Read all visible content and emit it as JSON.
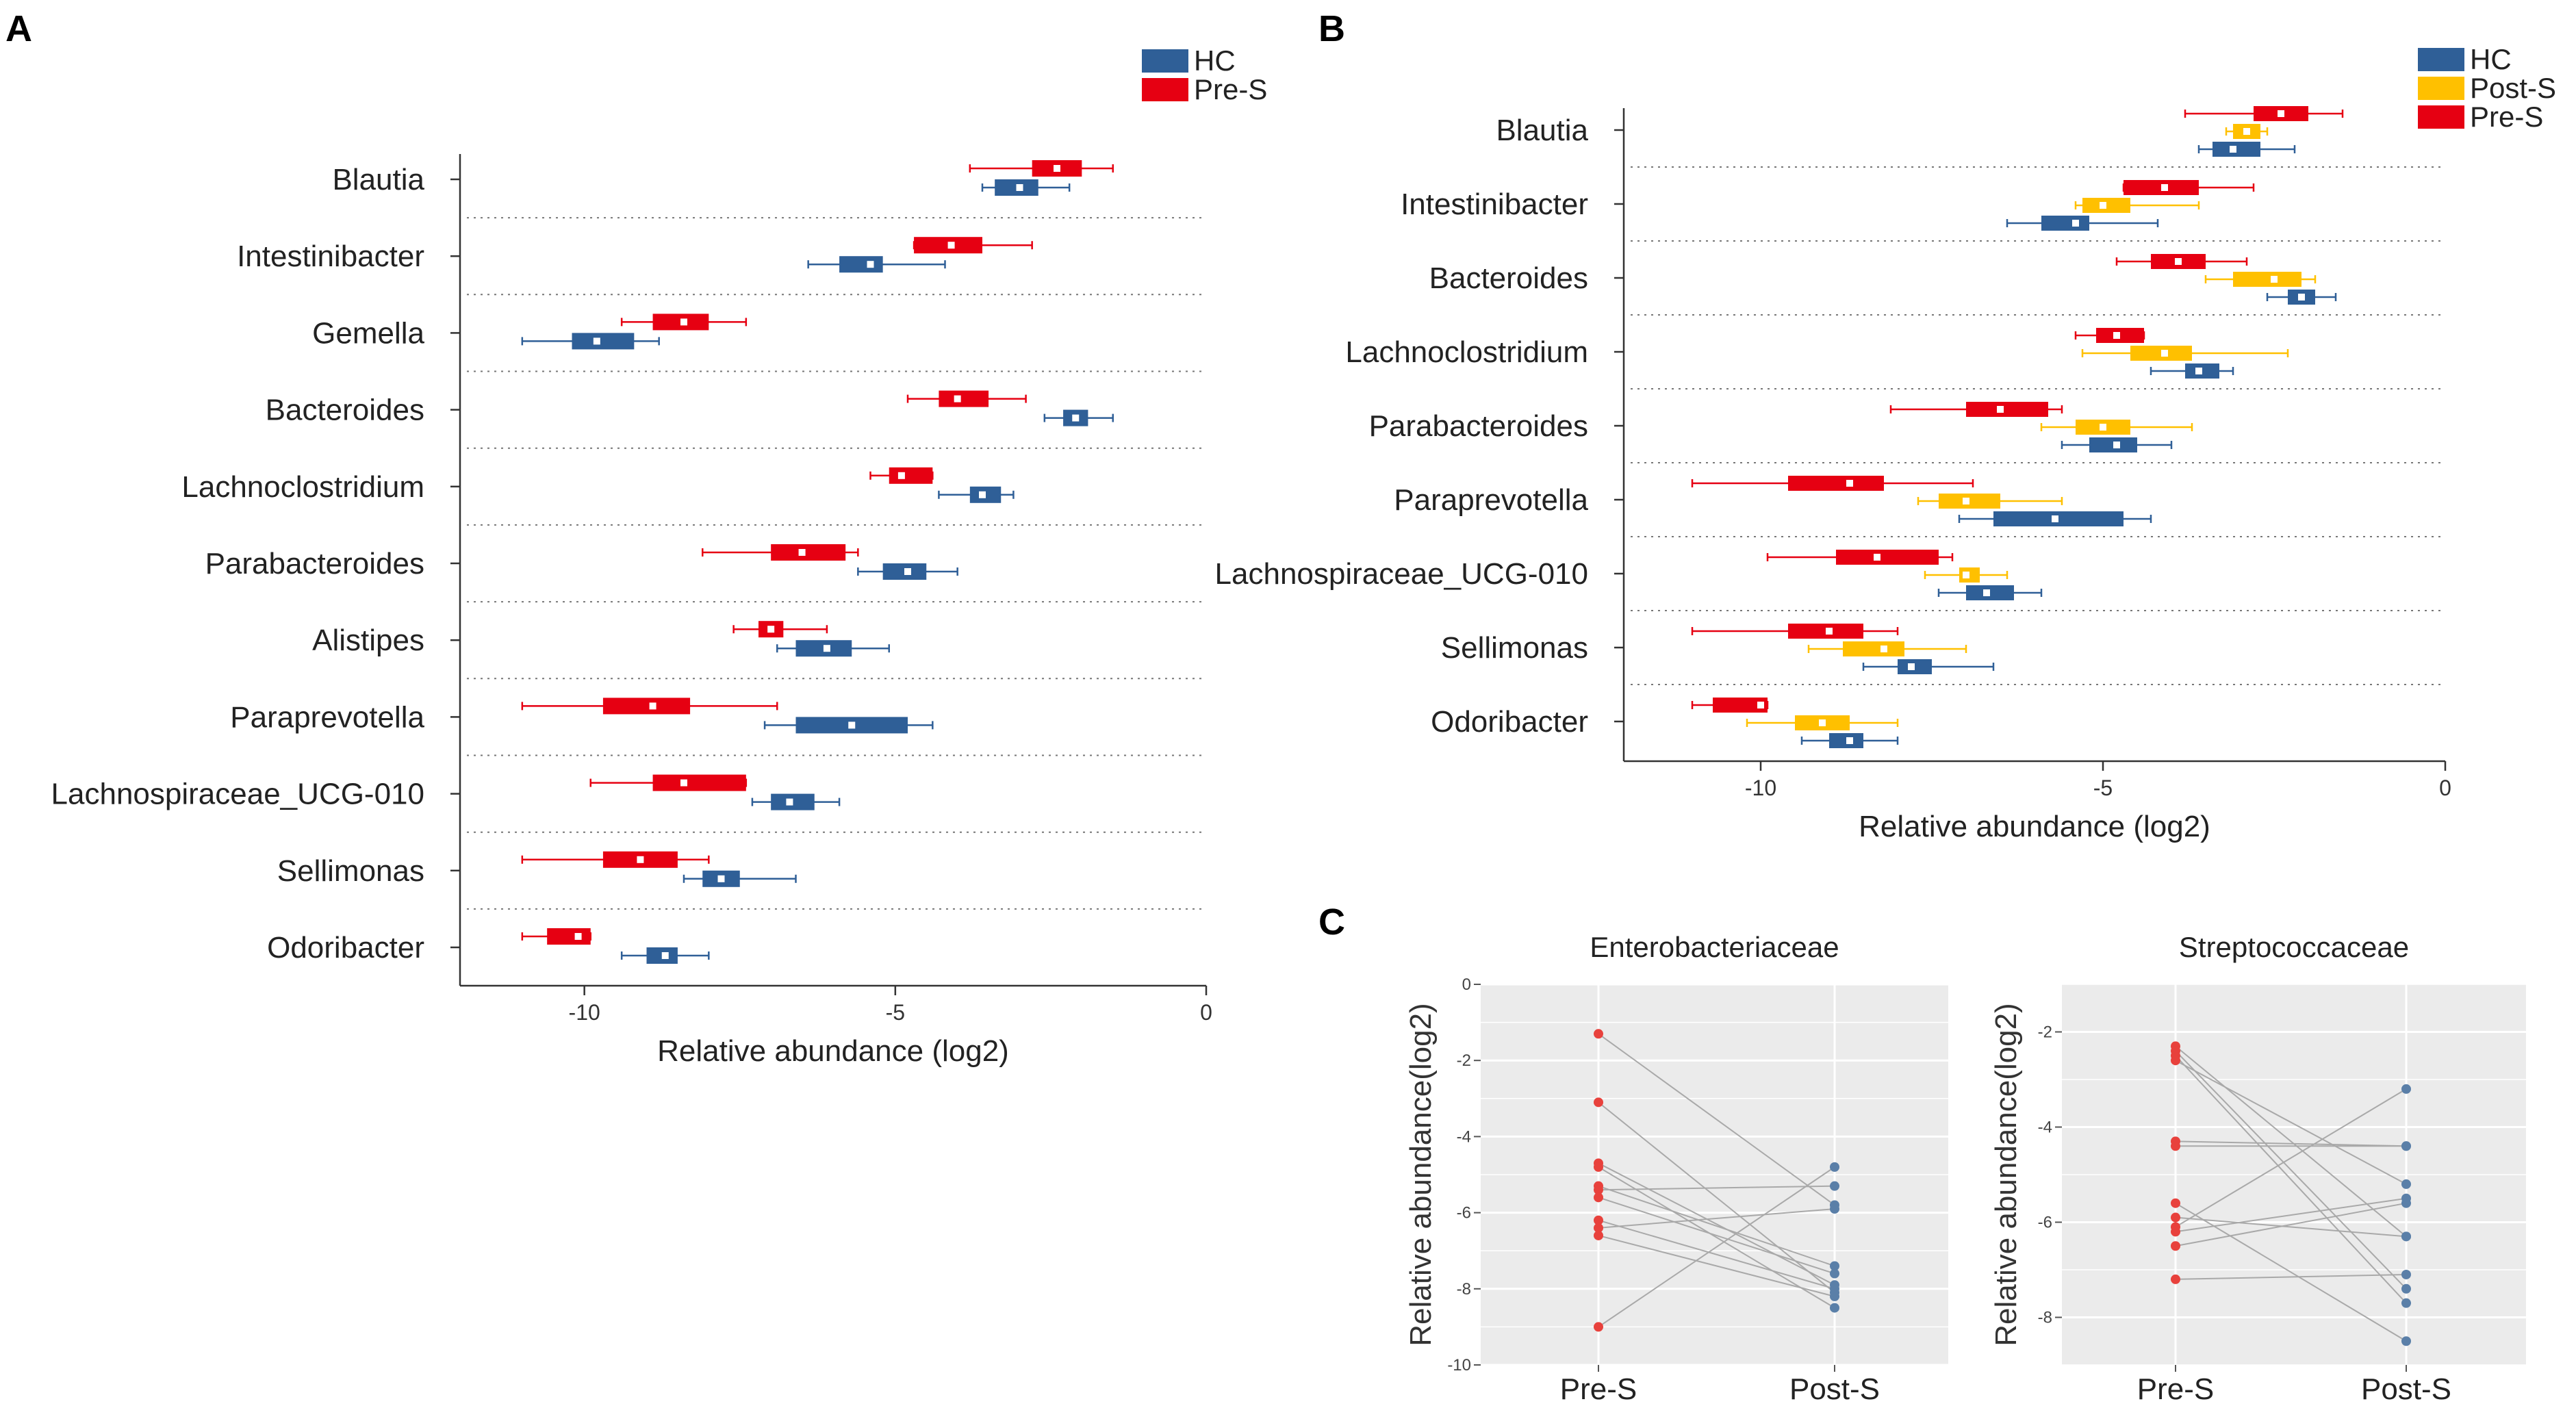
{
  "chart_data": [
    {
      "type": "box",
      "panel": "A",
      "xlabel": "Relative abundance (log2)",
      "xlim": [
        -12,
        0
      ],
      "xticks": [
        -10,
        -5,
        0
      ],
      "legend": [
        "HC",
        "Pre-S"
      ],
      "legend_position": "top-right",
      "colors": {
        "HC": "#2f5f97",
        "Pre-S": "#e60012"
      },
      "categories": [
        "Blautia",
        "Intestinibacter",
        "Gemella",
        "Bacteroides",
        "Lachnoclostridium",
        "Parabacteroides",
        "Alistipes",
        "Paraprevotella",
        "Lachnospiraceae_UCG-010",
        "Sellimonas",
        "Odoribacter"
      ],
      "series": [
        {
          "name": "Pre-S",
          "boxes": [
            {
              "wlo": -3.8,
              "q1": -2.8,
              "med": -2.4,
              "q3": -2.0,
              "whi": -1.5
            },
            {
              "wlo": -4.7,
              "q1": -4.7,
              "med": -4.1,
              "q3": -3.6,
              "whi": -2.8
            },
            {
              "wlo": -9.4,
              "q1": -8.9,
              "med": -8.4,
              "q3": -8.0,
              "whi": -7.4
            },
            {
              "wlo": -4.8,
              "q1": -4.3,
              "med": -4.0,
              "q3": -3.5,
              "whi": -2.9
            },
            {
              "wlo": -5.4,
              "q1": -5.1,
              "med": -4.9,
              "q3": -4.4,
              "whi": -4.4
            },
            {
              "wlo": -8.1,
              "q1": -7.0,
              "med": -6.5,
              "q3": -5.8,
              "whi": -5.6
            },
            {
              "wlo": -7.6,
              "q1": -7.2,
              "med": -7.0,
              "q3": -6.8,
              "whi": -6.1
            },
            {
              "wlo": -11.0,
              "q1": -9.7,
              "med": -8.9,
              "q3": -8.3,
              "whi": -6.9
            },
            {
              "wlo": -9.9,
              "q1": -8.9,
              "med": -8.4,
              "q3": -7.4,
              "whi": -7.4
            },
            {
              "wlo": -11.0,
              "q1": -9.7,
              "med": -9.1,
              "q3": -8.5,
              "whi": -8.0
            },
            {
              "wlo": -11.0,
              "q1": -10.6,
              "med": -10.1,
              "q3": -9.9,
              "whi": -9.9
            }
          ]
        },
        {
          "name": "HC",
          "boxes": [
            {
              "wlo": -3.6,
              "q1": -3.4,
              "med": -3.0,
              "q3": -2.7,
              "whi": -2.2
            },
            {
              "wlo": -6.4,
              "q1": -5.9,
              "med": -5.4,
              "q3": -5.2,
              "whi": -4.2
            },
            {
              "wlo": -11.0,
              "q1": -10.2,
              "med": -9.8,
              "q3": -9.2,
              "whi": -8.8
            },
            {
              "wlo": -2.6,
              "q1": -2.3,
              "med": -2.1,
              "q3": -1.9,
              "whi": -1.5
            },
            {
              "wlo": -4.3,
              "q1": -3.8,
              "med": -3.6,
              "q3": -3.3,
              "whi": -3.1
            },
            {
              "wlo": -5.6,
              "q1": -5.2,
              "med": -4.8,
              "q3": -4.5,
              "whi": -4.0
            },
            {
              "wlo": -6.9,
              "q1": -6.6,
              "med": -6.1,
              "q3": -5.7,
              "whi": -5.1
            },
            {
              "wlo": -7.1,
              "q1": -6.6,
              "med": -5.7,
              "q3": -4.8,
              "whi": -4.4
            },
            {
              "wlo": -7.3,
              "q1": -7.0,
              "med": -6.7,
              "q3": -6.3,
              "whi": -5.9
            },
            {
              "wlo": -8.4,
              "q1": -8.1,
              "med": -7.8,
              "q3": -7.5,
              "whi": -6.6
            },
            {
              "wlo": -9.4,
              "q1": -9.0,
              "med": -8.7,
              "q3": -8.5,
              "whi": -8.0
            }
          ]
        }
      ]
    },
    {
      "type": "box",
      "panel": "B",
      "xlabel": "Relative abundance (log2)",
      "xlim": [
        -12,
        0
      ],
      "xticks": [
        -10,
        -5,
        0
      ],
      "legend": [
        "HC",
        "Post-S",
        "Pre-S"
      ],
      "legend_position": "top-right",
      "colors": {
        "HC": "#2f5f97",
        "Post-S": "#ffc000",
        "Pre-S": "#e60012"
      },
      "categories": [
        "Blautia",
        "Intestinibacter",
        "Bacteroides",
        "Lachnoclostridium",
        "Parabacteroides",
        "Paraprevotella",
        "Lachnospiraceae_UCG-010",
        "Sellimonas",
        "Odoribacter"
      ],
      "series": [
        {
          "name": "Pre-S",
          "boxes": [
            {
              "wlo": -3.8,
              "q1": -2.8,
              "med": -2.4,
              "q3": -2.0,
              "whi": -1.5
            },
            {
              "wlo": -4.7,
              "q1": -4.7,
              "med": -4.1,
              "q3": -3.6,
              "whi": -2.8
            },
            {
              "wlo": -4.8,
              "q1": -4.3,
              "med": -3.9,
              "q3": -3.5,
              "whi": -2.9
            },
            {
              "wlo": -5.4,
              "q1": -5.1,
              "med": -4.8,
              "q3": -4.4,
              "whi": -4.4
            },
            {
              "wlo": -8.1,
              "q1": -7.0,
              "med": -6.5,
              "q3": -5.8,
              "whi": -5.6
            },
            {
              "wlo": -11.0,
              "q1": -9.6,
              "med": -8.7,
              "q3": -8.2,
              "whi": -6.9
            },
            {
              "wlo": -9.9,
              "q1": -8.9,
              "med": -8.3,
              "q3": -7.4,
              "whi": -7.2
            },
            {
              "wlo": -11.0,
              "q1": -9.6,
              "med": -9.0,
              "q3": -8.5,
              "whi": -8.0
            },
            {
              "wlo": -11.0,
              "q1": -10.7,
              "med": -10.0,
              "q3": -9.9,
              "whi": -9.9
            }
          ]
        },
        {
          "name": "Post-S",
          "boxes": [
            {
              "wlo": -3.2,
              "q1": -3.1,
              "med": -2.9,
              "q3": -2.7,
              "whi": -2.6
            },
            {
              "wlo": -5.4,
              "q1": -5.3,
              "med": -5.0,
              "q3": -4.6,
              "whi": -3.6
            },
            {
              "wlo": -3.5,
              "q1": -3.1,
              "med": -2.5,
              "q3": -2.1,
              "whi": -1.9
            },
            {
              "wlo": -5.3,
              "q1": -4.6,
              "med": -4.1,
              "q3": -3.7,
              "whi": -2.3
            },
            {
              "wlo": -5.9,
              "q1": -5.4,
              "med": -5.0,
              "q3": -4.6,
              "whi": -3.7
            },
            {
              "wlo": -7.7,
              "q1": -7.4,
              "med": -7.0,
              "q3": -6.5,
              "whi": -5.6
            },
            {
              "wlo": -7.6,
              "q1": -7.1,
              "med": -7.0,
              "q3": -6.8,
              "whi": -6.4
            },
            {
              "wlo": -9.3,
              "q1": -8.8,
              "med": -8.2,
              "q3": -7.9,
              "whi": -7.0
            },
            {
              "wlo": -10.2,
              "q1": -9.5,
              "med": -9.1,
              "q3": -8.7,
              "whi": -8.0
            }
          ]
        },
        {
          "name": "HC",
          "boxes": [
            {
              "wlo": -3.6,
              "q1": -3.4,
              "med": -3.1,
              "q3": -2.7,
              "whi": -2.2
            },
            {
              "wlo": -6.4,
              "q1": -5.9,
              "med": -5.4,
              "q3": -5.2,
              "whi": -4.2
            },
            {
              "wlo": -2.6,
              "q1": -2.3,
              "med": -2.1,
              "q3": -1.9,
              "whi": -1.6
            },
            {
              "wlo": -4.3,
              "q1": -3.8,
              "med": -3.6,
              "q3": -3.3,
              "whi": -3.1
            },
            {
              "wlo": -5.6,
              "q1": -5.2,
              "med": -4.8,
              "q3": -4.5,
              "whi": -4.0
            },
            {
              "wlo": -7.1,
              "q1": -6.6,
              "med": -5.7,
              "q3": -4.7,
              "whi": -4.3
            },
            {
              "wlo": -7.4,
              "q1": -7.0,
              "med": -6.7,
              "q3": -6.3,
              "whi": -5.9
            },
            {
              "wlo": -8.5,
              "q1": -8.0,
              "med": -7.8,
              "q3": -7.5,
              "whi": -6.6
            },
            {
              "wlo": -9.4,
              "q1": -9.0,
              "med": -8.7,
              "q3": -8.5,
              "whi": -8.0
            }
          ]
        }
      ]
    },
    {
      "type": "paired-scatter",
      "panel": "C",
      "title": "Enterobacteriaceae",
      "ylabel": "Relative abundance(log2)",
      "ylim": [
        -10,
        0
      ],
      "yticks": [
        0,
        -2,
        -4,
        -6,
        -8,
        -10
      ],
      "categories": [
        "Pre-S",
        "Post-S"
      ],
      "colors": {
        "Pre-S": "#e8413c",
        "Post-S": "#5a7fa8"
      },
      "pairs": [
        [
          -1.3,
          -5.8
        ],
        [
          -3.1,
          -8.1
        ],
        [
          -4.7,
          -7.9
        ],
        [
          -4.8,
          -8.5
        ],
        [
          -5.3,
          -7.4
        ],
        [
          -5.4,
          -5.3
        ],
        [
          -5.6,
          -7.6
        ],
        [
          -6.2,
          -8.0
        ],
        [
          -6.4,
          -5.9
        ],
        [
          -6.6,
          -8.2
        ],
        [
          -9.0,
          -4.8
        ]
      ]
    },
    {
      "type": "paired-scatter",
      "panel": "C",
      "title": "Streptococcaceae",
      "ylabel": "Relative abundance(log2)",
      "ylim": [
        -9,
        -1
      ],
      "yticks": [
        -2,
        -4,
        -6,
        -8
      ],
      "categories": [
        "Pre-S",
        "Post-S"
      ],
      "colors": {
        "Pre-S": "#e8413c",
        "Post-S": "#5a7fa8"
      },
      "pairs": [
        [
          -2.3,
          -6.3
        ],
        [
          -2.4,
          -7.4
        ],
        [
          -2.5,
          -7.7
        ],
        [
          -2.6,
          -5.2
        ],
        [
          -4.3,
          -4.4
        ],
        [
          -4.4,
          -4.4
        ],
        [
          -5.6,
          -8.5
        ],
        [
          -5.9,
          -6.3
        ],
        [
          -6.1,
          -3.2
        ],
        [
          -6.2,
          -5.5
        ],
        [
          -6.5,
          -5.6
        ],
        [
          -7.2,
          -7.1
        ]
      ]
    }
  ],
  "panel_labels": [
    "A",
    "B",
    "C"
  ]
}
